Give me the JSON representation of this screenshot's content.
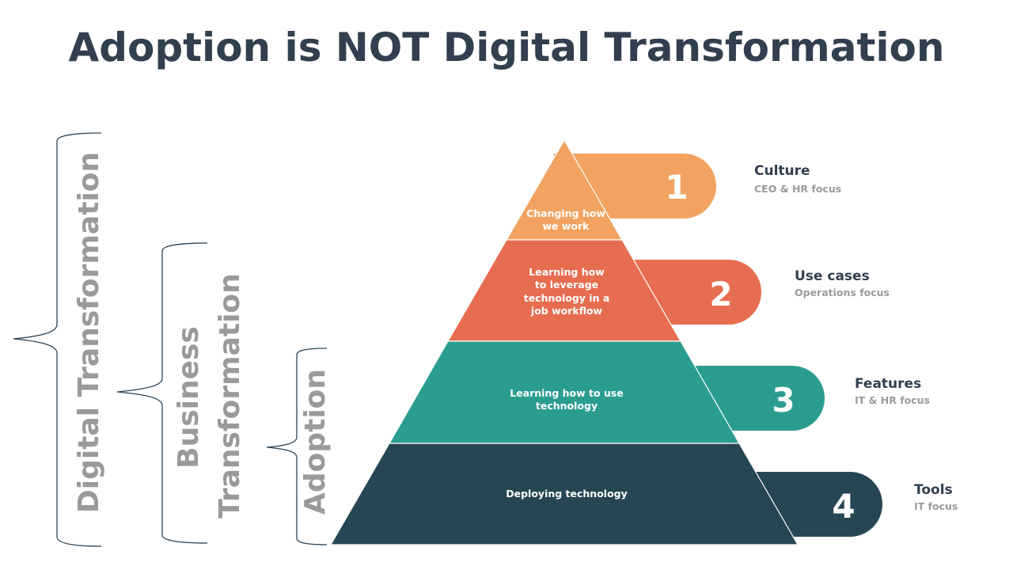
{
  "title": "Adoption is NOT Digital Transformation",
  "colors": {
    "title": "#323F4F",
    "level1": "#F2A361",
    "level2": "#E76D50",
    "level3": "#2A9D8F",
    "level4": "#264653",
    "side_text": "#9A9A9A"
  },
  "brackets": [
    {
      "lines": [
        "Digital Transformation"
      ]
    },
    {
      "lines": [
        "Business",
        "Transformation"
      ]
    },
    {
      "lines": [
        "Adoption"
      ]
    }
  ],
  "levels": [
    {
      "number": "1",
      "pyramid_text": [
        "Changing how",
        "we work"
      ],
      "label": "Culture",
      "focus": "CEO & HR focus"
    },
    {
      "number": "2",
      "pyramid_text": [
        "Learning how",
        "to leverage",
        "technology in a",
        "job workflow"
      ],
      "label": "Use cases",
      "focus": "Operations focus"
    },
    {
      "number": "3",
      "pyramid_text": [
        "Learning how to use",
        "technology"
      ],
      "label": "Features",
      "focus": "IT & HR focus"
    },
    {
      "number": "4",
      "pyramid_text": [
        "Deploying technology"
      ],
      "label": "Tools",
      "focus": "IT focus"
    }
  ]
}
